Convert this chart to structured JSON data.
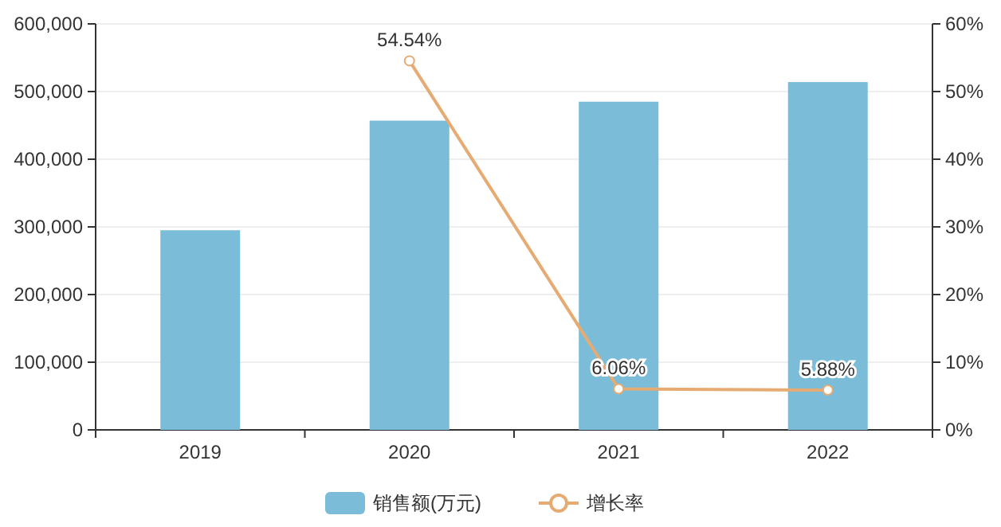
{
  "chart_data": {
    "type": "bar",
    "categories": [
      "2019",
      "2020",
      "2021",
      "2022"
    ],
    "ylim": [
      0,
      600000
    ],
    "yticks": [
      {
        "value": 0,
        "label": "0"
      },
      {
        "value": 100000,
        "label": "100,000"
      },
      {
        "value": 200000,
        "label": "200,000"
      },
      {
        "value": 300000,
        "label": "300,000"
      },
      {
        "value": 400000,
        "label": "400,000"
      },
      {
        "value": 500000,
        "label": "500,000"
      },
      {
        "value": 600000,
        "label": "600,000"
      }
    ],
    "y2lim": [
      0,
      60
    ],
    "y2ticks": [
      {
        "value": 0,
        "label": "0%"
      },
      {
        "value": 10,
        "label": "10%"
      },
      {
        "value": 20,
        "label": "20%"
      },
      {
        "value": 30,
        "label": "30%"
      },
      {
        "value": 40,
        "label": "40%"
      },
      {
        "value": 50,
        "label": "50%"
      },
      {
        "value": 60,
        "label": "60%"
      }
    ],
    "grid": "y",
    "legend": "bottom",
    "marker": "circle",
    "series": [
      {
        "name": "销售额(万元)",
        "color": "#7bbcd9",
        "values": [
          295000,
          457000,
          485000,
          514000
        ]
      },
      {
        "name": "增长率",
        "type": "line",
        "axis": "y2",
        "color": "#e6ab72",
        "values": [
          null,
          54.54,
          6.06,
          5.88
        ],
        "value_labels": [
          null,
          "54.54%",
          "6.06%",
          "5.88%"
        ]
      }
    ]
  }
}
